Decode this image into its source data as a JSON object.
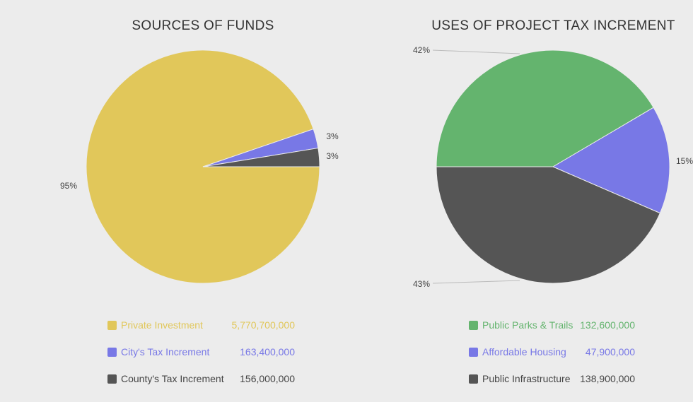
{
  "chart_data": [
    {
      "type": "pie",
      "title": "SOURCES OF FUNDS",
      "slices": [
        {
          "label": "Private Investment",
          "value": 5770700000,
          "display": "5,770,700,000",
          "percent_label": "95%",
          "color": "#e1c75a"
        },
        {
          "label": "City's Tax Increment",
          "value": 163400000,
          "display": "163,400,000",
          "percent_label": "3%",
          "color": "#7878e6"
        },
        {
          "label": "County's Tax Increment",
          "value": 156000000,
          "display": "156,000,000",
          "percent_label": "3%",
          "color": "#555555"
        }
      ],
      "legend_position": "bottom"
    },
    {
      "type": "pie",
      "title": "USES OF PROJECT TAX INCREMENT",
      "slices": [
        {
          "label": "Public Parks & Trails",
          "value": 132600000,
          "display": "132,600,000",
          "percent_label": "42%",
          "color": "#64b46e"
        },
        {
          "label": "Affordable Housing",
          "value": 47900000,
          "display": "47,900,000",
          "percent_label": "15%",
          "color": "#7878e6"
        },
        {
          "label": "Public Infrastructure",
          "value": 138900000,
          "display": "138,900,000",
          "percent_label": "43%",
          "color": "#555555"
        }
      ],
      "legend_position": "bottom"
    }
  ]
}
